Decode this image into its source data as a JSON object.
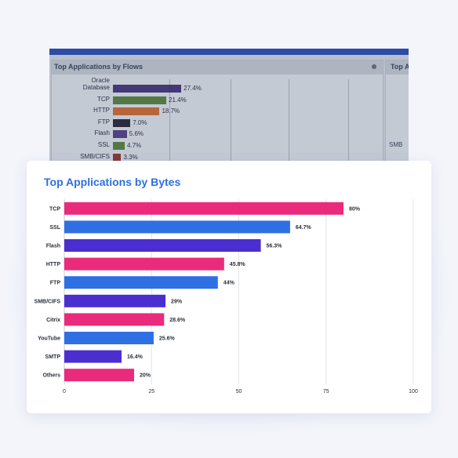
{
  "background_panel": {
    "title": "Top Applications by Flows",
    "second_title": "Top A",
    "second_label": "SMB",
    "rows": [
      {
        "label": "Oracle Database",
        "value": "27.4%",
        "color": "#2e1f66"
      },
      {
        "label": "TCP",
        "value": "21.4%",
        "color": "#3f6a2b"
      },
      {
        "label": "HTTP",
        "value": "18.7%",
        "color": "#b5541f"
      },
      {
        "label": "FTP",
        "value": "7.0%",
        "color": "#101025"
      },
      {
        "label": "Flash",
        "value": "5.6%",
        "color": "#3a2a70"
      },
      {
        "label": "SSL",
        "value": "4.7%",
        "color": "#3f6a2b"
      },
      {
        "label": "SMB/CIFS",
        "value": "3.3%",
        "color": "#7a1f1f"
      }
    ]
  },
  "chart_data": {
    "type": "bar",
    "orientation": "horizontal",
    "title": "Top Applications by Bytes",
    "categories": [
      "TCP",
      "SSL",
      "Flash",
      "HTTP",
      "FTP",
      "SMB/CIFS",
      "Citrix",
      "YouTube",
      "SMTP",
      "Others"
    ],
    "values": [
      80,
      64.7,
      56.3,
      45.8,
      44,
      29,
      28.6,
      25.6,
      16.4,
      20
    ],
    "value_labels": [
      "80%",
      "64.7%",
      "56.3%",
      "45.8%",
      "44%",
      "29%",
      "28.6%",
      "25.6%",
      "16.4%",
      "20%"
    ],
    "bar_colors": [
      "#ea2a7a",
      "#2f6fe4",
      "#4a2ed0",
      "#ea2a7a",
      "#2f6fe4",
      "#4a2ed0",
      "#ea2a7a",
      "#2f6fe4",
      "#4a2ed0",
      "#ea2a7a"
    ],
    "xlim": [
      0,
      100
    ],
    "xticks": [
      0,
      25,
      50,
      75,
      100
    ],
    "grid": true,
    "legend": "none"
  }
}
